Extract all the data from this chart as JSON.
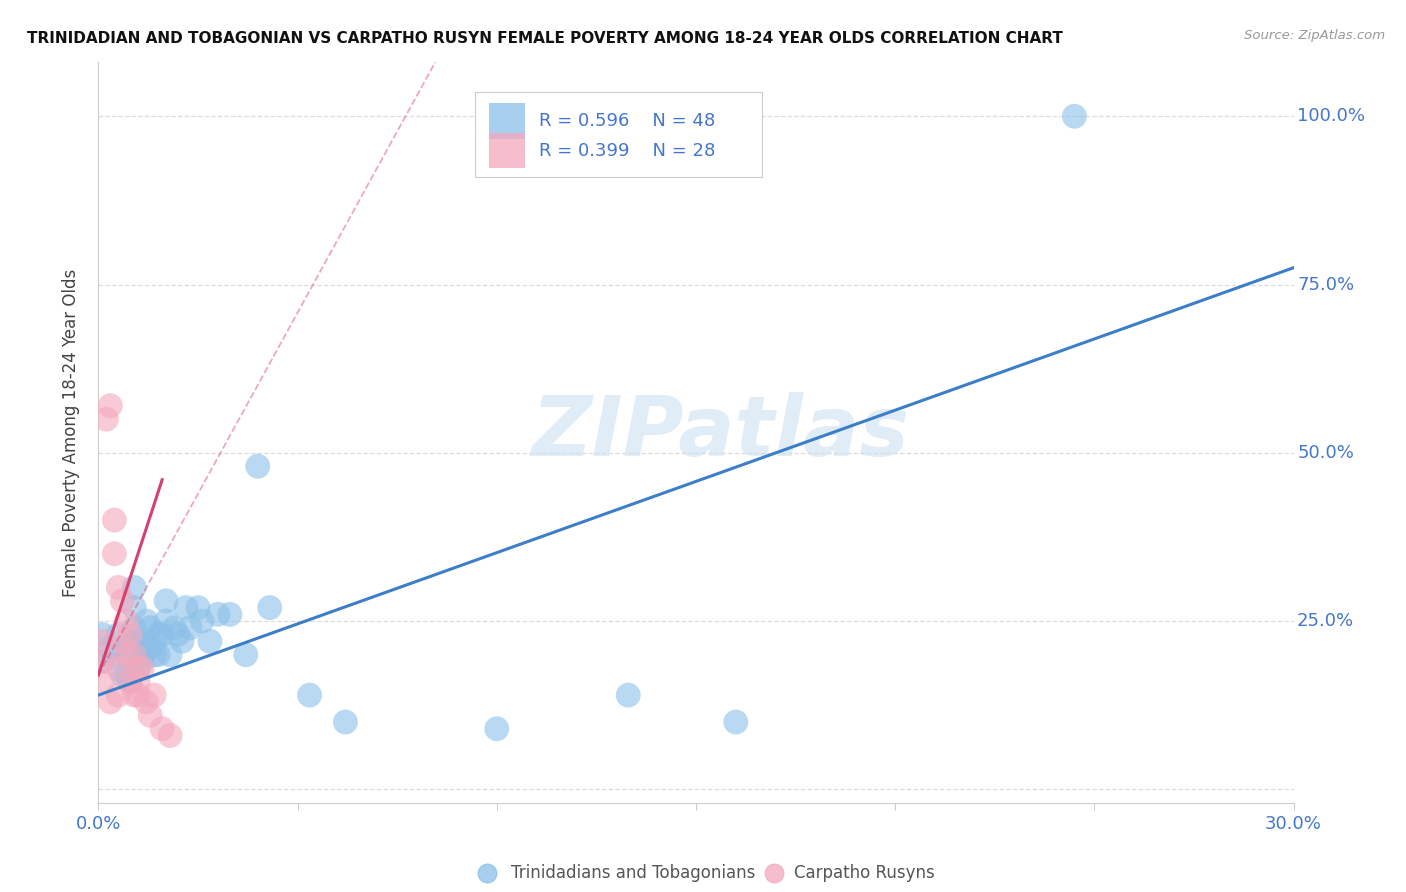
{
  "title": "TRINIDADIAN AND TOBAGONIAN VS CARPATHO RUSYN FEMALE POVERTY AMONG 18-24 YEAR OLDS CORRELATION CHART",
  "source": "Source: ZipAtlas.com",
  "ylabel": "Female Poverty Among 18-24 Year Olds",
  "xlim": [
    0.0,
    0.3
  ],
  "ylim": [
    -0.02,
    1.08
  ],
  "xticks": [
    0.0,
    0.05,
    0.1,
    0.15,
    0.2,
    0.25,
    0.3
  ],
  "xticklabels": [
    "0.0%",
    "",
    "",
    "",
    "",
    "",
    "30.0%"
  ],
  "ytick_positions": [
    0.0,
    0.25,
    0.5,
    0.75,
    1.0
  ],
  "ytick_labels": [
    "",
    "25.0%",
    "50.0%",
    "75.0%",
    "100.0%"
  ],
  "watermark": "ZIPatlas",
  "legend_blue_r": "R = 0.596",
  "legend_blue_n": "N = 48",
  "legend_pink_r": "R = 0.399",
  "legend_pink_n": "N = 28",
  "legend_blue_label": "Trinidadians and Tobagonians",
  "legend_pink_label": "Carpatho Rusyns",
  "blue_color": "#8bbfe8",
  "pink_color": "#f4a8bc",
  "blue_line_color": "#3d7ec9",
  "pink_line_color": "#d44070",
  "axis_label_color": "#4477cc",
  "blue_scatter": {
    "x": [
      0.001,
      0.001,
      0.003,
      0.004,
      0.005,
      0.006,
      0.007,
      0.007,
      0.008,
      0.008,
      0.009,
      0.009,
      0.009,
      0.01,
      0.01,
      0.01,
      0.011,
      0.012,
      0.012,
      0.013,
      0.013,
      0.014,
      0.014,
      0.015,
      0.015,
      0.016,
      0.017,
      0.017,
      0.018,
      0.019,
      0.02,
      0.021,
      0.022,
      0.023,
      0.025,
      0.026,
      0.028,
      0.03,
      0.033,
      0.037,
      0.04,
      0.043,
      0.053,
      0.062,
      0.1,
      0.133,
      0.16,
      0.245
    ],
    "y": [
      0.19,
      0.23,
      0.21,
      0.2,
      0.23,
      0.17,
      0.17,
      0.2,
      0.16,
      0.22,
      0.24,
      0.27,
      0.3,
      0.22,
      0.2,
      0.18,
      0.19,
      0.21,
      0.25,
      0.21,
      0.24,
      0.22,
      0.2,
      0.2,
      0.23,
      0.23,
      0.25,
      0.28,
      0.2,
      0.24,
      0.23,
      0.22,
      0.27,
      0.24,
      0.27,
      0.25,
      0.22,
      0.26,
      0.26,
      0.2,
      0.48,
      0.27,
      0.14,
      0.1,
      0.09,
      0.14,
      0.1,
      1.0
    ]
  },
  "pink_scatter": {
    "x": [
      0.001,
      0.001,
      0.001,
      0.002,
      0.003,
      0.003,
      0.004,
      0.004,
      0.005,
      0.005,
      0.005,
      0.006,
      0.006,
      0.007,
      0.007,
      0.008,
      0.008,
      0.009,
      0.009,
      0.01,
      0.01,
      0.01,
      0.011,
      0.012,
      0.013,
      0.014,
      0.016,
      0.018
    ],
    "y": [
      0.22,
      0.19,
      0.16,
      0.55,
      0.57,
      0.13,
      0.35,
      0.4,
      0.14,
      0.18,
      0.3,
      0.22,
      0.28,
      0.2,
      0.25,
      0.16,
      0.23,
      0.2,
      0.14,
      0.18,
      0.16,
      0.14,
      0.18,
      0.13,
      0.11,
      0.14,
      0.09,
      0.08
    ]
  },
  "blue_line": {
    "x": [
      0.0,
      0.3
    ],
    "y": [
      0.14,
      0.775
    ]
  },
  "pink_line_solid": {
    "x": [
      0.0,
      0.016
    ],
    "y": [
      0.17,
      0.46
    ]
  },
  "pink_line_dashed": {
    "x": [
      0.0,
      0.3
    ],
    "y": [
      0.17,
      3.4
    ]
  },
  "background_color": "#ffffff",
  "grid_color": "#dddddd"
}
